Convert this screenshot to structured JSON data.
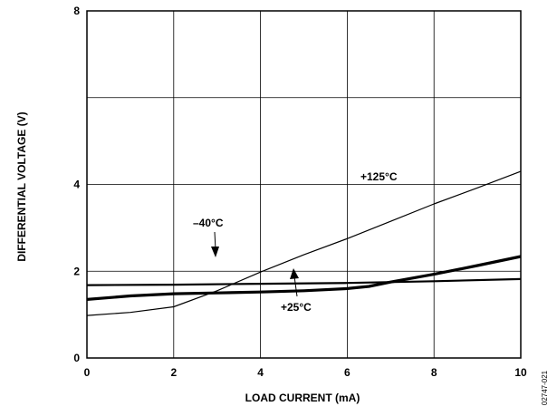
{
  "chart_data": {
    "type": "line",
    "title": "",
    "xlabel": "LOAD CURRENT (mA)",
    "ylabel": "DIFFERENTIAL VOLTAGE (V)",
    "xlim": [
      0,
      10
    ],
    "ylim": [
      0,
      8
    ],
    "xticks": [
      "0",
      "2",
      "4",
      "6",
      "8",
      "10"
    ],
    "yticks": [
      "0",
      "2",
      "4",
      "8"
    ],
    "grid": true,
    "series": [
      {
        "name": "+125°C",
        "x": [
          0,
          1,
          2,
          3,
          4,
          5,
          6,
          7,
          8,
          9,
          10
        ],
        "y": [
          0.98,
          1.05,
          1.18,
          1.55,
          1.98,
          2.38,
          2.75,
          3.15,
          3.55,
          3.92,
          4.3
        ]
      },
      {
        "name": "–40°C",
        "x": [
          0,
          2,
          4,
          6,
          8,
          10
        ],
        "y": [
          1.68,
          1.69,
          1.71,
          1.73,
          1.77,
          1.82
        ]
      },
      {
        "name": "+25°C",
        "x": [
          0,
          1,
          2,
          3,
          4,
          5,
          6,
          6.5,
          7,
          8,
          9,
          10
        ],
        "y": [
          1.35,
          1.43,
          1.48,
          1.5,
          1.52,
          1.55,
          1.6,
          1.65,
          1.75,
          1.93,
          2.13,
          2.34
        ]
      }
    ],
    "annotations": [
      "+125°C",
      "–40°C",
      "+25°C"
    ],
    "figure_id": "02747-021"
  }
}
